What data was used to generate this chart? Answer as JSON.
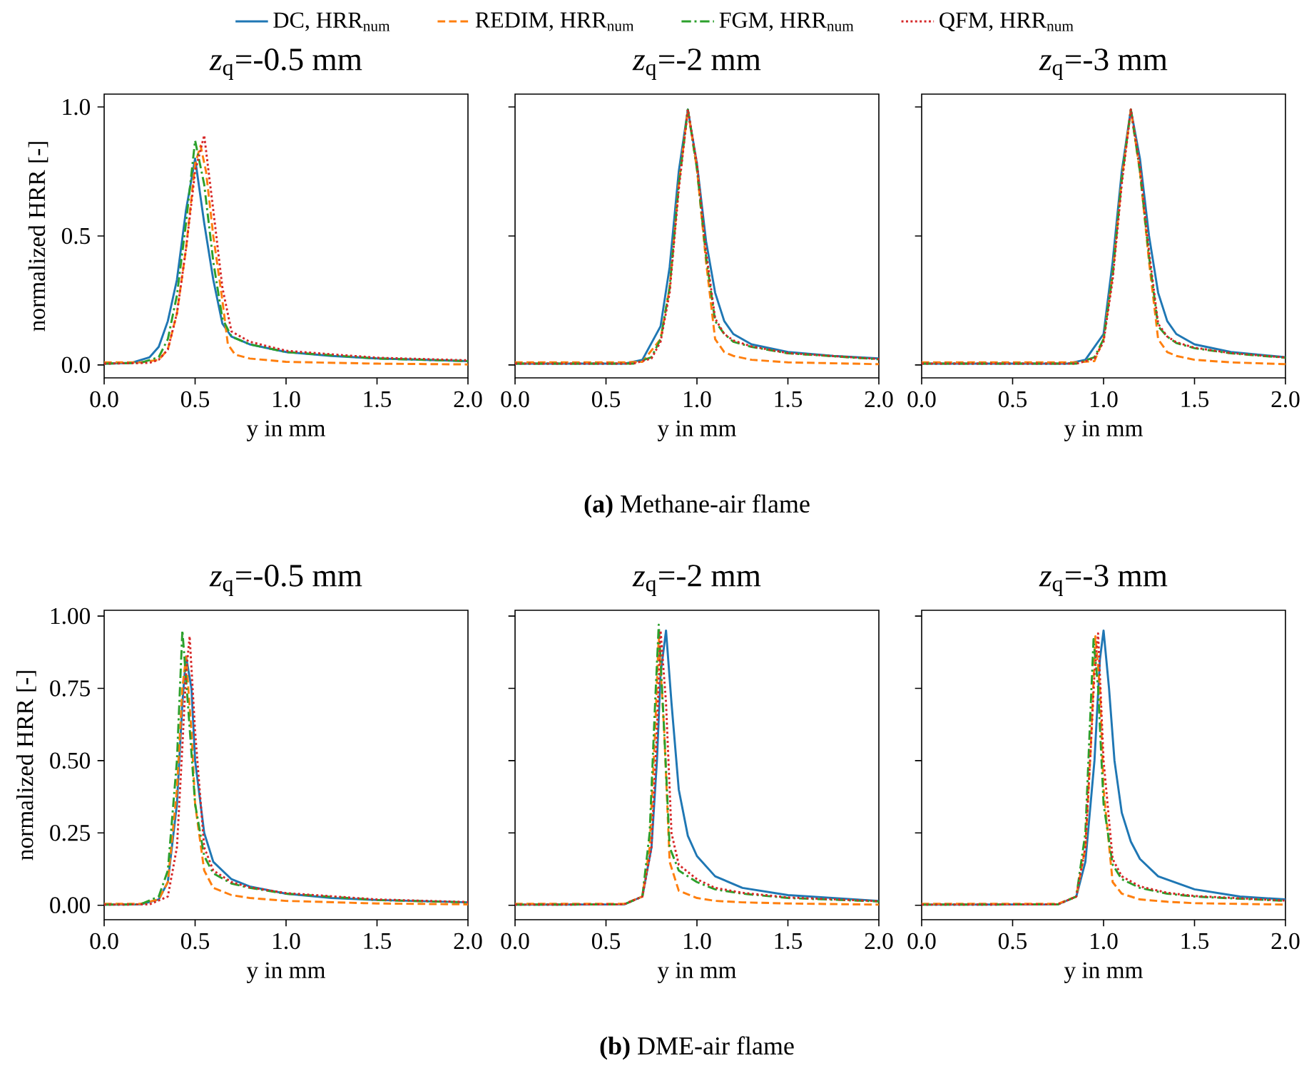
{
  "chart_data": [
    {
      "type": "line",
      "title": "*z*$_{q}$=-0.5 mm",
      "xlabel": "y in mm",
      "ylabel": "normalized HRR [-]",
      "xlim": [
        0,
        2
      ],
      "ylim": [
        -0.05,
        1.05
      ],
      "xticks": [
        {
          "value": 0,
          "label": "0.0"
        },
        {
          "value": 0.5,
          "label": "0.5"
        },
        {
          "value": 1,
          "label": "1.0"
        },
        {
          "value": 1.5,
          "label": "1.5"
        },
        {
          "value": 2,
          "label": "2.0"
        }
      ],
      "yticks": [
        {
          "value": 0,
          "label": "0.0"
        },
        {
          "value": 0.5,
          "label": "0.5"
        },
        {
          "value": 1,
          "label": "1.0"
        }
      ],
      "legend": "top",
      "grid": false,
      "series": [
        {
          "name": "DC, HRR$_{num}$",
          "color": "#1f77b4",
          "line_style": "solid",
          "x": [
            0,
            0.15,
            0.25,
            0.3,
            0.35,
            0.4,
            0.45,
            0.5,
            0.55,
            0.6,
            0.65,
            0.7,
            0.8,
            1.0,
            1.25,
            1.5,
            2.0
          ],
          "values": [
            0.005,
            0.008,
            0.03,
            0.07,
            0.17,
            0.33,
            0.6,
            0.8,
            0.55,
            0.33,
            0.16,
            0.11,
            0.08,
            0.05,
            0.035,
            0.025,
            0.015
          ]
        },
        {
          "name": "REDIM, HRR$_{num}$",
          "color": "#ff7f0e",
          "line_style": "dashed",
          "x": [
            0,
            0.2,
            0.3,
            0.35,
            0.4,
            0.45,
            0.5,
            0.53,
            0.56,
            0.6,
            0.65,
            0.68,
            0.72,
            0.8,
            1.0,
            1.5,
            2.0
          ],
          "values": [
            0.01,
            0.01,
            0.02,
            0.06,
            0.2,
            0.45,
            0.78,
            0.85,
            0.75,
            0.5,
            0.25,
            0.08,
            0.04,
            0.025,
            0.012,
            0.005,
            0.002
          ]
        },
        {
          "name": "FGM, HRR$_{num}$",
          "color": "#2ca02c",
          "line_style": "dashdot",
          "x": [
            0,
            0.2,
            0.3,
            0.35,
            0.4,
            0.45,
            0.5,
            0.55,
            0.6,
            0.65,
            0.7,
            0.8,
            1.0,
            1.5,
            2.0
          ],
          "values": [
            0.005,
            0.008,
            0.03,
            0.1,
            0.27,
            0.55,
            0.87,
            0.7,
            0.4,
            0.18,
            0.11,
            0.08,
            0.05,
            0.025,
            0.015
          ]
        },
        {
          "name": "QFM, HRR$_{num}$",
          "color": "#d62728",
          "line_style": "dotted",
          "x": [
            0,
            0.25,
            0.3,
            0.35,
            0.4,
            0.45,
            0.5,
            0.55,
            0.6,
            0.65,
            0.7,
            0.8,
            1.0,
            1.5,
            2.0
          ],
          "values": [
            0.005,
            0.008,
            0.02,
            0.06,
            0.2,
            0.45,
            0.75,
            0.89,
            0.6,
            0.3,
            0.13,
            0.09,
            0.055,
            0.028,
            0.018
          ]
        }
      ]
    },
    {
      "type": "line",
      "title": "*z*$_{q}$=-2 mm",
      "xlabel": "y in mm",
      "xlim": [
        0,
        2
      ],
      "ylim": [
        -0.05,
        1.05
      ],
      "xticks": [
        {
          "value": 0,
          "label": "0.0"
        },
        {
          "value": 0.5,
          "label": "0.5"
        },
        {
          "value": 1,
          "label": "1.0"
        },
        {
          "value": 1.5,
          "label": "1.5"
        },
        {
          "value": 2,
          "label": "2.0"
        }
      ],
      "yticks": [
        {
          "value": 0,
          "label": null
        },
        {
          "value": 0.5,
          "label": null
        },
        {
          "value": 1,
          "label": null
        }
      ],
      "tick_labels": "x",
      "annotations": [
        "**(a)** Methane-air flame"
      ],
      "series": [
        {
          "color": "#1f77b4",
          "line_style": "solid",
          "x": [
            0,
            0.6,
            0.7,
            0.8,
            0.85,
            0.9,
            0.95,
            1.0,
            1.05,
            1.1,
            1.15,
            1.2,
            1.3,
            1.5,
            1.75,
            2.0
          ],
          "values": [
            0.005,
            0.005,
            0.02,
            0.15,
            0.38,
            0.75,
            0.99,
            0.78,
            0.48,
            0.28,
            0.17,
            0.12,
            0.08,
            0.05,
            0.035,
            0.025
          ]
        },
        {
          "color": "#ff7f0e",
          "line_style": "dashed",
          "x": [
            0,
            0.6,
            0.7,
            0.8,
            0.85,
            0.9,
            0.95,
            1.0,
            1.05,
            1.1,
            1.15,
            1.2,
            1.3,
            1.5,
            2.0
          ],
          "values": [
            0.01,
            0.01,
            0.012,
            0.1,
            0.3,
            0.7,
            0.99,
            0.76,
            0.4,
            0.1,
            0.05,
            0.035,
            0.02,
            0.01,
            0.003
          ]
        },
        {
          "color": "#2ca02c",
          "line_style": "dashdot",
          "x": [
            0,
            0.65,
            0.75,
            0.8,
            0.85,
            0.9,
            0.95,
            1.0,
            1.05,
            1.1,
            1.15,
            1.2,
            1.3,
            1.5,
            2.0
          ],
          "values": [
            0.005,
            0.005,
            0.03,
            0.1,
            0.3,
            0.7,
            0.99,
            0.76,
            0.42,
            0.17,
            0.12,
            0.09,
            0.07,
            0.045,
            0.022
          ]
        },
        {
          "color": "#d62728",
          "line_style": "dotted",
          "x": [
            0,
            0.65,
            0.75,
            0.8,
            0.85,
            0.9,
            0.95,
            1.0,
            1.05,
            1.1,
            1.15,
            1.2,
            1.3,
            1.5,
            2.0
          ],
          "values": [
            0.005,
            0.005,
            0.025,
            0.09,
            0.28,
            0.68,
            0.99,
            0.78,
            0.44,
            0.18,
            0.12,
            0.095,
            0.072,
            0.046,
            0.023
          ]
        }
      ]
    },
    {
      "type": "line",
      "title": "*z*$_{q}$=-3 mm",
      "xlabel": "y in mm",
      "xlim": [
        0,
        2
      ],
      "ylim": [
        -0.05,
        1.05
      ],
      "xticks": [
        {
          "value": 0,
          "label": "0.0"
        },
        {
          "value": 0.5,
          "label": "0.5"
        },
        {
          "value": 1,
          "label": "1.0"
        },
        {
          "value": 1.5,
          "label": "1.5"
        },
        {
          "value": 2,
          "label": "2.0"
        }
      ],
      "yticks": [
        {
          "value": 0,
          "label": null
        },
        {
          "value": 0.5,
          "label": null
        },
        {
          "value": 1,
          "label": null
        }
      ],
      "tick_labels": "x",
      "series": [
        {
          "color": "#1f77b4",
          "line_style": "solid",
          "x": [
            0,
            0.8,
            0.9,
            1.0,
            1.05,
            1.1,
            1.15,
            1.2,
            1.25,
            1.3,
            1.35,
            1.4,
            1.5,
            1.7,
            2.0
          ],
          "values": [
            0.005,
            0.005,
            0.02,
            0.12,
            0.4,
            0.75,
            0.99,
            0.8,
            0.5,
            0.28,
            0.17,
            0.12,
            0.08,
            0.05,
            0.03
          ]
        },
        {
          "color": "#ff7f0e",
          "line_style": "dashed",
          "x": [
            0,
            0.85,
            0.95,
            1.0,
            1.05,
            1.1,
            1.15,
            1.2,
            1.25,
            1.3,
            1.35,
            1.4,
            1.5,
            1.7,
            2.0
          ],
          "values": [
            0.01,
            0.01,
            0.015,
            0.1,
            0.35,
            0.72,
            0.99,
            0.75,
            0.4,
            0.1,
            0.05,
            0.035,
            0.02,
            0.01,
            0.003
          ]
        },
        {
          "color": "#2ca02c",
          "line_style": "dashdot",
          "x": [
            0,
            0.85,
            0.95,
            1.0,
            1.05,
            1.1,
            1.15,
            1.2,
            1.25,
            1.3,
            1.35,
            1.4,
            1.5,
            1.7,
            2.0
          ],
          "values": [
            0.005,
            0.005,
            0.03,
            0.1,
            0.35,
            0.72,
            0.99,
            0.75,
            0.42,
            0.15,
            0.11,
            0.085,
            0.065,
            0.045,
            0.028
          ]
        },
        {
          "color": "#d62728",
          "line_style": "dotted",
          "x": [
            0,
            0.85,
            0.95,
            1.0,
            1.05,
            1.1,
            1.15,
            1.2,
            1.25,
            1.3,
            1.35,
            1.4,
            1.5,
            1.7,
            2.0
          ],
          "values": [
            0.005,
            0.005,
            0.025,
            0.09,
            0.33,
            0.7,
            0.99,
            0.77,
            0.44,
            0.16,
            0.11,
            0.088,
            0.067,
            0.046,
            0.029
          ]
        }
      ]
    },
    {
      "type": "line",
      "title": "*z*$_{q}$=-0.5 mm",
      "xlabel": "y in mm",
      "ylabel": "normalized HRR [-]",
      "xlim": [
        0,
        2
      ],
      "ylim": [
        -0.05,
        1.02
      ],
      "xticks": [
        {
          "value": 0,
          "label": "0.0"
        },
        {
          "value": 0.5,
          "label": "0.5"
        },
        {
          "value": 1,
          "label": "1.0"
        },
        {
          "value": 1.5,
          "label": "1.5"
        },
        {
          "value": 2,
          "label": "2.0"
        }
      ],
      "yticks": [
        {
          "value": 0,
          "label": "0.00"
        },
        {
          "value": 0.25,
          "label": "0.25"
        },
        {
          "value": 0.5,
          "label": "0.50"
        },
        {
          "value": 0.75,
          "label": "0.75"
        },
        {
          "value": 1,
          "label": "1.00"
        }
      ],
      "series": [
        {
          "color": "#1f77b4",
          "line_style": "solid",
          "x": [
            0,
            0.2,
            0.3,
            0.35,
            0.4,
            0.43,
            0.45,
            0.48,
            0.5,
            0.55,
            0.6,
            0.7,
            0.8,
            1.0,
            1.25,
            1.5,
            2.0
          ],
          "values": [
            0.002,
            0.003,
            0.02,
            0.08,
            0.35,
            0.7,
            0.86,
            0.75,
            0.5,
            0.25,
            0.15,
            0.09,
            0.065,
            0.04,
            0.025,
            0.018,
            0.01
          ]
        },
        {
          "color": "#ff7f0e",
          "line_style": "dashed",
          "x": [
            0,
            0.2,
            0.3,
            0.35,
            0.4,
            0.43,
            0.45,
            0.48,
            0.5,
            0.55,
            0.6,
            0.7,
            0.8,
            1.0,
            1.5,
            2.0
          ],
          "values": [
            0.005,
            0.005,
            0.02,
            0.08,
            0.4,
            0.75,
            0.86,
            0.6,
            0.35,
            0.12,
            0.06,
            0.035,
            0.025,
            0.015,
            0.006,
            0.003
          ]
        },
        {
          "color": "#2ca02c",
          "line_style": "dashdot",
          "x": [
            0,
            0.2,
            0.3,
            0.35,
            0.4,
            0.43,
            0.46,
            0.5,
            0.55,
            0.6,
            0.7,
            0.8,
            1.0,
            1.5,
            2.0
          ],
          "values": [
            0.002,
            0.003,
            0.03,
            0.12,
            0.5,
            0.95,
            0.7,
            0.35,
            0.17,
            0.11,
            0.075,
            0.06,
            0.04,
            0.018,
            0.01
          ]
        },
        {
          "color": "#d62728",
          "line_style": "dotted",
          "x": [
            0,
            0.25,
            0.35,
            0.4,
            0.43,
            0.45,
            0.47,
            0.5,
            0.55,
            0.6,
            0.7,
            0.8,
            1.0,
            1.5,
            2.0
          ],
          "values": [
            0.002,
            0.003,
            0.03,
            0.2,
            0.55,
            0.8,
            0.93,
            0.6,
            0.2,
            0.12,
            0.08,
            0.062,
            0.042,
            0.02,
            0.011
          ]
        }
      ]
    },
    {
      "type": "line",
      "title": "*z*$_{q}$=-2 mm",
      "xlabel": "y in mm",
      "xlim": [
        0,
        2
      ],
      "ylim": [
        -0.05,
        1.02
      ],
      "xticks": [
        {
          "value": 0,
          "label": "0.0"
        },
        {
          "value": 0.5,
          "label": "0.5"
        },
        {
          "value": 1,
          "label": "1.0"
        },
        {
          "value": 1.5,
          "label": "1.5"
        },
        {
          "value": 2,
          "label": "2.0"
        }
      ],
      "yticks": [
        {
          "value": 0,
          "label": null
        },
        {
          "value": 0.25,
          "label": null
        },
        {
          "value": 0.5,
          "label": null
        },
        {
          "value": 0.75,
          "label": null
        },
        {
          "value": 1,
          "label": null
        }
      ],
      "tick_labels": "x",
      "annotations": [
        "**(b)** DME-air flame"
      ],
      "series": [
        {
          "color": "#1f77b4",
          "line_style": "solid",
          "x": [
            0,
            0.6,
            0.7,
            0.75,
            0.78,
            0.8,
            0.83,
            0.86,
            0.9,
            0.95,
            1.0,
            1.1,
            1.25,
            1.5,
            2.0
          ],
          "values": [
            0.002,
            0.003,
            0.03,
            0.2,
            0.5,
            0.8,
            0.95,
            0.7,
            0.4,
            0.24,
            0.17,
            0.1,
            0.06,
            0.035,
            0.015
          ]
        },
        {
          "color": "#ff7f0e",
          "line_style": "dashed",
          "x": [
            0,
            0.6,
            0.7,
            0.74,
            0.77,
            0.79,
            0.82,
            0.85,
            0.9,
            1.0,
            1.1,
            1.25,
            1.5,
            2.0
          ],
          "values": [
            0.005,
            0.005,
            0.03,
            0.2,
            0.6,
            0.93,
            0.6,
            0.15,
            0.05,
            0.025,
            0.015,
            0.01,
            0.006,
            0.002
          ]
        },
        {
          "color": "#2ca02c",
          "line_style": "dashdot",
          "x": [
            0,
            0.6,
            0.7,
            0.74,
            0.77,
            0.79,
            0.82,
            0.85,
            0.9,
            1.0,
            1.1,
            1.25,
            1.5,
            2.0
          ],
          "values": [
            0.002,
            0.003,
            0.03,
            0.25,
            0.7,
            0.97,
            0.6,
            0.2,
            0.12,
            0.08,
            0.055,
            0.04,
            0.025,
            0.013
          ]
        },
        {
          "color": "#d62728",
          "line_style": "dotted",
          "x": [
            0,
            0.6,
            0.7,
            0.75,
            0.78,
            0.8,
            0.83,
            0.86,
            0.9,
            1.0,
            1.1,
            1.25,
            1.5,
            2.0
          ],
          "values": [
            0.002,
            0.003,
            0.03,
            0.2,
            0.6,
            0.95,
            0.7,
            0.25,
            0.14,
            0.09,
            0.06,
            0.043,
            0.027,
            0.014
          ]
        }
      ]
    },
    {
      "type": "line",
      "title": "*z*$_{q}$=-3 mm",
      "xlabel": "y in mm",
      "xlim": [
        0,
        2
      ],
      "ylim": [
        -0.05,
        1.02
      ],
      "xticks": [
        {
          "value": 0,
          "label": "0.0"
        },
        {
          "value": 0.5,
          "label": "0.5"
        },
        {
          "value": 1,
          "label": "1.0"
        },
        {
          "value": 1.5,
          "label": "1.5"
        },
        {
          "value": 2,
          "label": "2.0"
        }
      ],
      "yticks": [
        {
          "value": 0,
          "label": null
        },
        {
          "value": 0.25,
          "label": null
        },
        {
          "value": 0.5,
          "label": null
        },
        {
          "value": 0.75,
          "label": null
        },
        {
          "value": 1,
          "label": null
        }
      ],
      "tick_labels": "x",
      "series": [
        {
          "color": "#1f77b4",
          "line_style": "solid",
          "x": [
            0,
            0.75,
            0.85,
            0.9,
            0.95,
            0.98,
            1.0,
            1.03,
            1.06,
            1.1,
            1.15,
            1.2,
            1.3,
            1.5,
            1.75,
            2.0
          ],
          "values": [
            0.002,
            0.003,
            0.03,
            0.15,
            0.5,
            0.85,
            0.95,
            0.75,
            0.5,
            0.32,
            0.22,
            0.16,
            0.1,
            0.055,
            0.03,
            0.02
          ]
        },
        {
          "color": "#ff7f0e",
          "line_style": "dashed",
          "x": [
            0,
            0.75,
            0.85,
            0.9,
            0.93,
            0.955,
            0.98,
            1.0,
            1.05,
            1.1,
            1.2,
            1.35,
            1.5,
            2.0
          ],
          "values": [
            0.005,
            0.005,
            0.03,
            0.2,
            0.55,
            0.93,
            0.75,
            0.4,
            0.08,
            0.04,
            0.02,
            0.012,
            0.007,
            0.002
          ]
        },
        {
          "color": "#2ca02c",
          "line_style": "dashdot",
          "x": [
            0,
            0.75,
            0.85,
            0.9,
            0.92,
            0.945,
            0.97,
            1.0,
            1.05,
            1.1,
            1.2,
            1.35,
            1.5,
            2.0
          ],
          "values": [
            0.002,
            0.003,
            0.03,
            0.25,
            0.55,
            0.92,
            0.75,
            0.35,
            0.14,
            0.09,
            0.06,
            0.04,
            0.03,
            0.015
          ]
        },
        {
          "color": "#d62728",
          "line_style": "dotted",
          "x": [
            0,
            0.75,
            0.85,
            0.9,
            0.93,
            0.95,
            0.97,
            1.0,
            1.05,
            1.1,
            1.2,
            1.35,
            1.5,
            2.0
          ],
          "values": [
            0.002,
            0.003,
            0.03,
            0.2,
            0.55,
            0.8,
            0.94,
            0.5,
            0.16,
            0.1,
            0.065,
            0.043,
            0.032,
            0.016
          ]
        }
      ]
    }
  ]
}
